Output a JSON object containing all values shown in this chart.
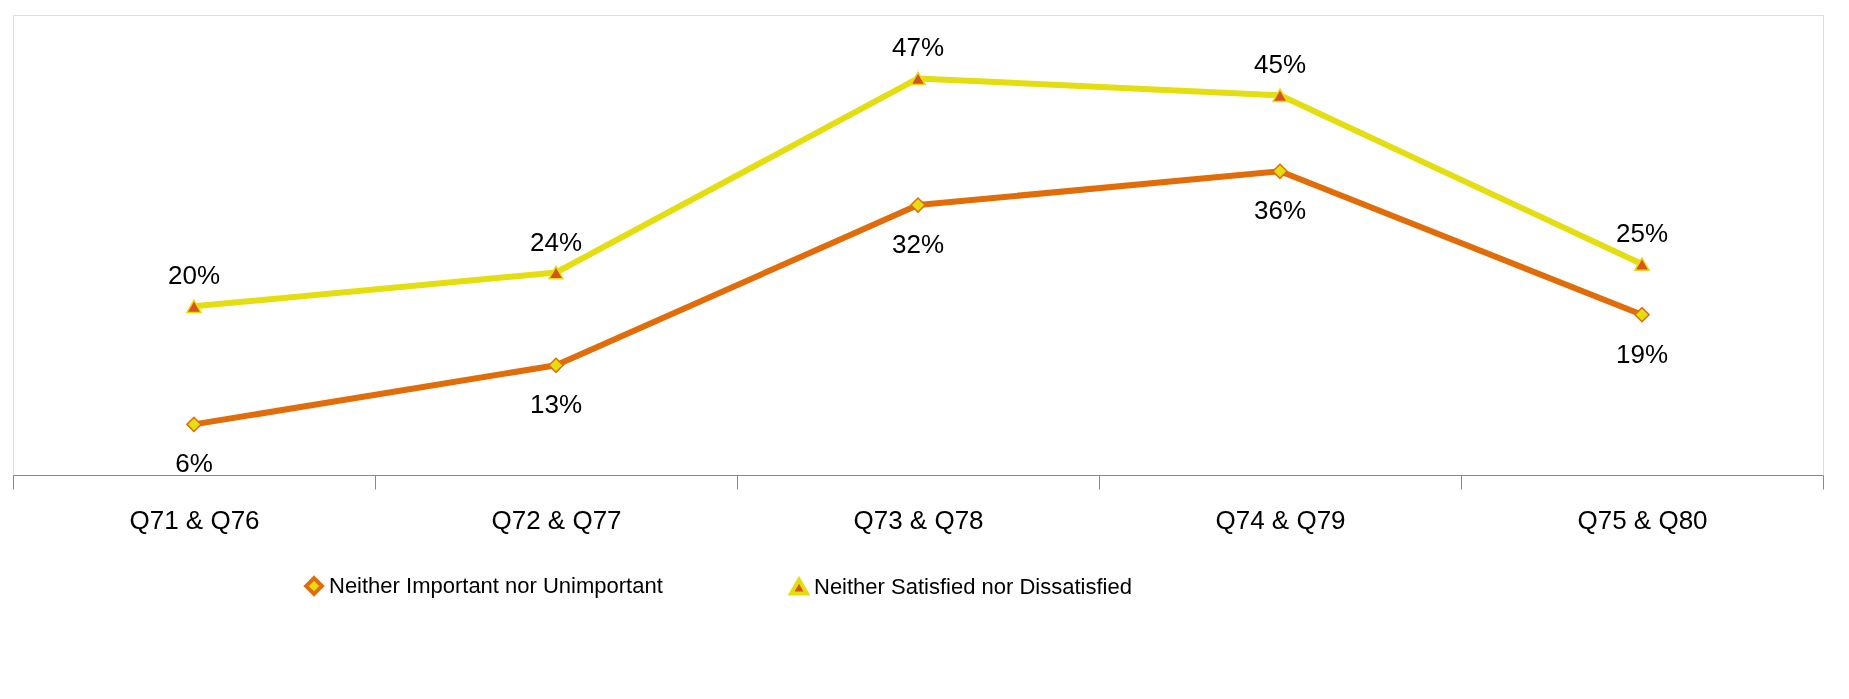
{
  "chart_data": {
    "type": "line",
    "categories": [
      "Q71 & Q76",
      "Q72 & Q77",
      "Q73 & Q78",
      "Q74 & Q79",
      "Q75 & Q80"
    ],
    "series": [
      {
        "name": "Neither Important nor Unimportant",
        "color": "#e06c0a",
        "marker": "diamond",
        "values": [
          6,
          13,
          32,
          36,
          19
        ],
        "value_labels": [
          "6%",
          "13%",
          "32%",
          "36%",
          "19%"
        ]
      },
      {
        "name": "Neither Satisfied nor Dissatisfied",
        "color": "#e4dd10",
        "marker": "triangle",
        "values": [
          20,
          24,
          47,
          45,
          25
        ],
        "value_labels": [
          "20%",
          "24%",
          "47%",
          "45%",
          "25%"
        ]
      }
    ],
    "legend": "bottom",
    "grid": false,
    "line_style": "solid"
  }
}
